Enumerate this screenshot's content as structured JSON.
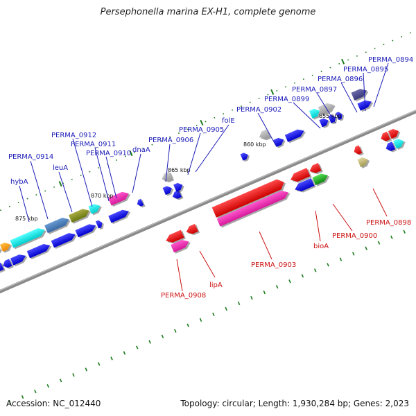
{
  "title": "Persephonella marina EX-H1, complete genome",
  "footer": {
    "accession": "Accession: NC_012440",
    "stats": "Topology: circular; Length: 1,930,284 bp; Genes: 2,023"
  },
  "scale_labels": [
    "875 kbp",
    "870 kbp",
    "865 kbp",
    "860 kbp",
    "855 kbp"
  ],
  "labels_top": [
    "hybA",
    "PERMA_0914",
    "leuA",
    "PERMA_0912",
    "PERMA_0911",
    "PERMA_0910",
    "dnaA",
    "PERMA_0906",
    "PERMA_0905",
    "folE",
    "PERMA_0902",
    "PERMA_0899",
    "PERMA_0897",
    "PERMA_0896",
    "PERMA_0895",
    "PERMA_0894"
  ],
  "labels_bottom": [
    "PERMA_0908",
    "lipA",
    "PERMA_0903",
    "bioA",
    "PERMA_0900",
    "PERMA_0898"
  ],
  "colors": {
    "label_top": "#1a1ab8",
    "label_bottom": "#cc1111",
    "backbone": "#8a8a8a",
    "tick": "#1a7a1a"
  }
}
